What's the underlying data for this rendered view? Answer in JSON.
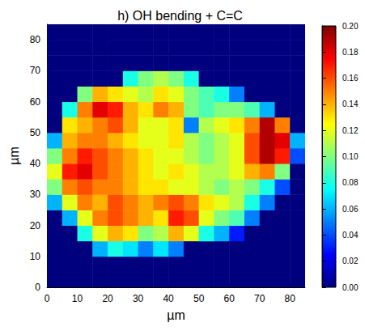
{
  "chart_data": {
    "type": "heatmap",
    "title": "h) OH bending + C=C",
    "xlabel": "µm",
    "ylabel": "µm",
    "x": [
      2.5,
      7.5,
      12.5,
      17.5,
      22.5,
      27.5,
      32.5,
      37.5,
      42.5,
      47.5,
      52.5,
      57.5,
      62.5,
      67.5,
      72.5,
      77.5,
      82.5
    ],
    "y": [
      2.5,
      7.5,
      12.5,
      17.5,
      22.5,
      27.5,
      32.5,
      37.5,
      42.5,
      47.5,
      52.5,
      57.5,
      62.5,
      67.5,
      72.5,
      77.5,
      82.5
    ],
    "cells": [
      [
        0,
        0,
        0,
        0,
        0,
        0,
        0,
        0,
        0,
        0,
        0,
        0,
        0,
        0,
        0,
        0,
        0
      ],
      [
        0,
        0,
        0,
        0,
        0,
        0,
        0,
        0,
        0,
        0,
        0,
        0,
        0,
        0,
        0,
        0,
        0
      ],
      [
        0,
        0,
        0,
        0.06,
        0.08,
        0.07,
        0.05,
        0.07,
        0.05,
        0,
        0,
        0,
        0,
        0,
        0,
        0,
        0
      ],
      [
        0,
        0,
        0.08,
        0.12,
        0.14,
        0.13,
        0.1,
        0.11,
        0.14,
        0.12,
        0.08,
        0.06,
        0.03,
        0,
        0,
        0,
        0
      ],
      [
        0,
        0.06,
        0.12,
        0.15,
        0.16,
        0.15,
        0.14,
        0.13,
        0.17,
        0.16,
        0.12,
        0.1,
        0.09,
        0.05,
        0,
        0,
        0
      ],
      [
        0.06,
        0.12,
        0.15,
        0.14,
        0.16,
        0.15,
        0.14,
        0.15,
        0.16,
        0.15,
        0.13,
        0.12,
        0.11,
        0.08,
        0.05,
        0,
        0
      ],
      [
        0.1,
        0.15,
        0.16,
        0.15,
        0.15,
        0.14,
        0.13,
        0.13,
        0.12,
        0.12,
        0.11,
        0.1,
        0.11,
        0.1,
        0.08,
        0.04,
        0
      ],
      [
        0.12,
        0.17,
        0.18,
        0.16,
        0.15,
        0.14,
        0.13,
        0.12,
        0.13,
        0.12,
        0.11,
        0.11,
        0.12,
        0.14,
        0.15,
        0.1,
        0
      ],
      [
        0.1,
        0.15,
        0.17,
        0.16,
        0.15,
        0.14,
        0.13,
        0.12,
        0.12,
        0.11,
        0.1,
        0.11,
        0.12,
        0.16,
        0.19,
        0.17,
        0.04
      ],
      [
        0.06,
        0.14,
        0.15,
        0.15,
        0.14,
        0.13,
        0.12,
        0.12,
        0.13,
        0.11,
        0.1,
        0.11,
        0.12,
        0.16,
        0.19,
        0.18,
        0.06
      ],
      [
        0,
        0.13,
        0.14,
        0.15,
        0.16,
        0.14,
        0.12,
        0.12,
        0.13,
        0.05,
        0.11,
        0.12,
        0.13,
        0.15,
        0.19,
        0.15,
        0
      ],
      [
        0,
        0.08,
        0.15,
        0.18,
        0.17,
        0.14,
        0.13,
        0.15,
        0.14,
        0.1,
        0.09,
        0.1,
        0.1,
        0.09,
        0.06,
        0,
        0
      ],
      [
        0,
        0,
        0.1,
        0.14,
        0.13,
        0.12,
        0.11,
        0.13,
        0.12,
        0.1,
        0.09,
        0.08,
        0.05,
        0,
        0,
        0,
        0
      ],
      [
        0,
        0,
        0,
        0,
        0,
        0.08,
        0.1,
        0.11,
        0.1,
        0.08,
        0,
        0,
        0,
        0,
        0,
        0,
        0
      ],
      [
        0,
        0,
        0,
        0,
        0,
        0,
        0,
        0,
        0,
        0,
        0,
        0,
        0,
        0,
        0,
        0,
        0
      ],
      [
        0,
        0,
        0,
        0,
        0,
        0,
        0,
        0,
        0,
        0,
        0,
        0,
        0,
        0,
        0,
        0,
        0
      ],
      [
        0,
        0,
        0,
        0,
        0,
        0,
        0,
        0,
        0,
        0,
        0,
        0,
        0,
        0,
        0,
        0,
        0
      ]
    ],
    "xlim": [
      0,
      85
    ],
    "ylim": [
      0,
      85
    ],
    "xticks": [
      0,
      10,
      20,
      30,
      40,
      50,
      60,
      70,
      80
    ],
    "yticks": [
      0,
      10,
      20,
      30,
      40,
      50,
      60,
      70,
      80
    ],
    "colorbar_range": [
      0,
      0.2
    ],
    "colorbar_ticks": [
      {
        "value": 0,
        "label": "0.00"
      },
      {
        "value": 0.02,
        "label": "0.02"
      },
      {
        "value": 0.04,
        "label": "0.04"
      },
      {
        "value": 0.06,
        "label": "0.06"
      },
      {
        "value": 0.08,
        "label": "0.08"
      },
      {
        "value": 0.1,
        "label": "0.10"
      },
      {
        "value": 0.12,
        "label": "0.12"
      },
      {
        "value": 0.14,
        "label": "0.14"
      },
      {
        "value": 0.16,
        "label": "0.16"
      },
      {
        "value": 0.18,
        "label": "0.18"
      },
      {
        "value": 0.2,
        "label": "0.20"
      }
    ]
  }
}
